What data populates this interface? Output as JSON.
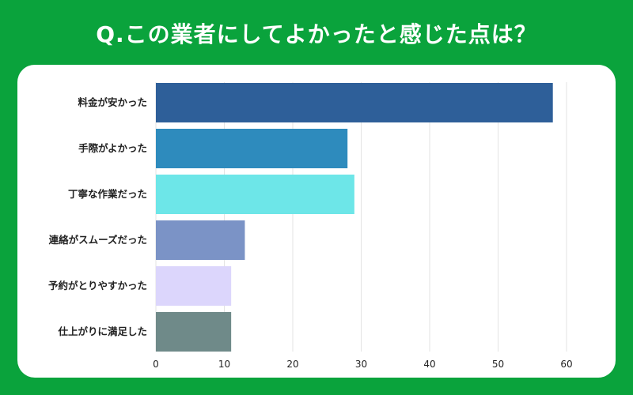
{
  "title": "Q.この業者にしてよかったと感じた点は？",
  "colors": {
    "background": "#0aa33c",
    "card": "#ffffff"
  },
  "chart_data": {
    "type": "bar",
    "orientation": "horizontal",
    "title": "Q.この業者にしてよかったと感じた点は？",
    "xlabel": "",
    "ylabel": "",
    "xlim": [
      0,
      60
    ],
    "xticks": [
      0,
      10,
      20,
      30,
      40,
      50,
      60
    ],
    "grid": true,
    "categories": [
      "料金が安かった",
      "手際がよかった",
      "丁寧な作業だった",
      "連絡がスムーズだった",
      "予約がとりやすかった",
      "仕上がりに満足した"
    ],
    "values": [
      58,
      28,
      29,
      13,
      11,
      11
    ],
    "bar_colors": [
      "#2e5f99",
      "#2e8bbd",
      "#6de6e8",
      "#7b93c6",
      "#dcd6fc",
      "#6f8a89"
    ]
  }
}
